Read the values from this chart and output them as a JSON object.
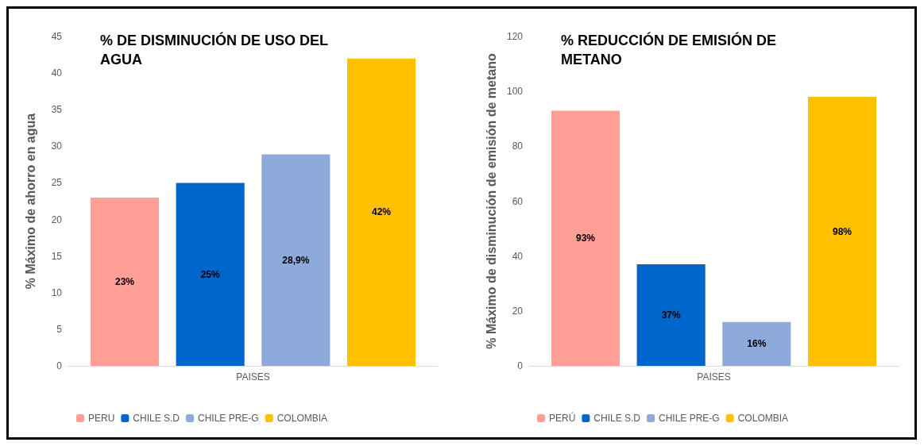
{
  "chart_data": [
    {
      "type": "bar",
      "title": "% DE DISMINUCIÓN DE USO DEL AGUA",
      "ylabel": "% Máximo de ahorro en agua",
      "categories": [
        "PAISES"
      ],
      "ylim": [
        0,
        45
      ],
      "yticks": [
        0,
        5,
        10,
        15,
        20,
        25,
        30,
        35,
        40,
        45
      ],
      "grid": false,
      "legend": "bottom",
      "series": [
        {
          "name": "PERU",
          "color": "#ff9f96",
          "values": [
            23
          ],
          "value_labels": [
            "23%"
          ]
        },
        {
          "name": "CHILE S.D",
          "color": "#0066cc",
          "values": [
            25
          ],
          "value_labels": [
            "25%"
          ]
        },
        {
          "name": "CHILE PRE-G",
          "color": "#8eaadb",
          "values": [
            28.9
          ],
          "value_labels": [
            "28,9%"
          ]
        },
        {
          "name": "COLOMBIA",
          "color": "#ffc000",
          "values": [
            42
          ],
          "value_labels": [
            "42%"
          ]
        }
      ]
    },
    {
      "type": "bar",
      "title": "% REDUCCIÓN DE EMISIÓN DE METANO",
      "ylabel": "% Máximo de disminución de emisión de metano",
      "categories": [
        "PAISES"
      ],
      "ylim": [
        0,
        120
      ],
      "yticks": [
        0,
        20,
        40,
        60,
        80,
        100,
        120
      ],
      "grid": false,
      "legend": "bottom",
      "series": [
        {
          "name": "PERÚ",
          "color": "#ff9f96",
          "values": [
            93
          ],
          "value_labels": [
            "93%"
          ]
        },
        {
          "name": "CHILE S.D",
          "color": "#0066cc",
          "values": [
            37
          ],
          "value_labels": [
            "37%"
          ]
        },
        {
          "name": "CHILE PRE-G",
          "color": "#8eaadb",
          "values": [
            16
          ],
          "value_labels": [
            "16%"
          ]
        },
        {
          "name": "COLOMBIA",
          "color": "#ffc000",
          "values": [
            98
          ],
          "value_labels": [
            "98%"
          ]
        }
      ]
    }
  ]
}
